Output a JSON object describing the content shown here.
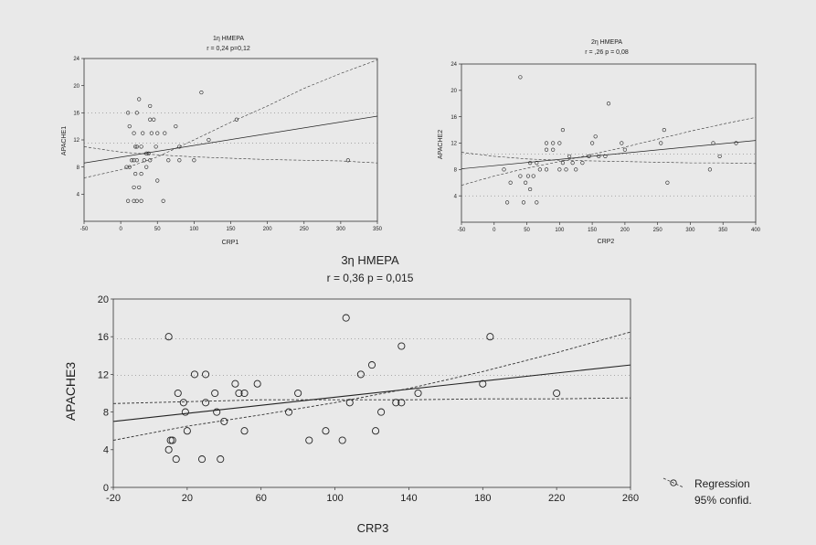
{
  "chart_data": [
    {
      "type": "scatter",
      "id": "chart1",
      "title": "1η ΗΜΕΡΑ",
      "subtitle": "r = 0,24 p=0,12",
      "xlabel": "CRP1",
      "ylabel": "APACHE1",
      "xlim": [
        -50,
        350
      ],
      "ylim": [
        0,
        24
      ],
      "xticks": [
        -50,
        0,
        50,
        100,
        150,
        200,
        250,
        300,
        350
      ],
      "yticks": [
        4,
        8,
        12,
        16,
        20,
        24
      ],
      "regression": {
        "x0": -50,
        "y0": 8.6,
        "x1": 350,
        "y1": 15.5
      },
      "conf_upper": [
        [
          -50,
          6.4
        ],
        [
          0,
          7.6
        ],
        [
          50,
          9.5
        ],
        [
          100,
          12
        ],
        [
          150,
          14.6
        ],
        [
          200,
          17
        ],
        [
          250,
          19.6
        ],
        [
          300,
          21.8
        ],
        [
          350,
          23.8
        ]
      ],
      "conf_lower": [
        [
          -50,
          11
        ],
        [
          0,
          10.2
        ],
        [
          50,
          9.8
        ],
        [
          100,
          9.5
        ],
        [
          150,
          9.3
        ],
        [
          200,
          9.1
        ],
        [
          250,
          9
        ],
        [
          300,
          8.9
        ],
        [
          350,
          8.6
        ]
      ],
      "band_levels": [
        11.5,
        16
      ],
      "points": [
        [
          10,
          3
        ],
        [
          18,
          3
        ],
        [
          22,
          3
        ],
        [
          28,
          3
        ],
        [
          58,
          3
        ],
        [
          18,
          5
        ],
        [
          25,
          5
        ],
        [
          50,
          6
        ],
        [
          8,
          8
        ],
        [
          20,
          7
        ],
        [
          28,
          7
        ],
        [
          35,
          8
        ],
        [
          12,
          8
        ],
        [
          15,
          9
        ],
        [
          18,
          9
        ],
        [
          22,
          9
        ],
        [
          32,
          9
        ],
        [
          40,
          9
        ],
        [
          65,
          9
        ],
        [
          80,
          9
        ],
        [
          120,
          12
        ],
        [
          35,
          10
        ],
        [
          38,
          10
        ],
        [
          20,
          11
        ],
        [
          22,
          11
        ],
        [
          28,
          11
        ],
        [
          48,
          11
        ],
        [
          30,
          13
        ],
        [
          42,
          13
        ],
        [
          50,
          13
        ],
        [
          60,
          13
        ],
        [
          18,
          13
        ],
        [
          12,
          14
        ],
        [
          75,
          14
        ],
        [
          40,
          15
        ],
        [
          45,
          15
        ],
        [
          10,
          16
        ],
        [
          22,
          16
        ],
        [
          40,
          17
        ],
        [
          25,
          18
        ],
        [
          110,
          19
        ],
        [
          158,
          15
        ],
        [
          80,
          11
        ],
        [
          100,
          9
        ],
        [
          310,
          9
        ]
      ]
    },
    {
      "type": "scatter",
      "id": "chart2",
      "title": "2η ΗΜΕΡΑ",
      "subtitle": "r = ,26 p = 0,08",
      "xlabel": "CRP2",
      "ylabel": "APACHE2",
      "xlim": [
        -50,
        400
      ],
      "ylim": [
        0,
        24
      ],
      "xticks": [
        -50,
        0,
        50,
        100,
        150,
        200,
        250,
        300,
        350,
        400
      ],
      "yticks": [
        4,
        8,
        12,
        16,
        20,
        24
      ],
      "regression": {
        "x0": -50,
        "y0": 8.1,
        "x1": 400,
        "y1": 12.4
      },
      "conf_upper": [
        [
          -50,
          5.6
        ],
        [
          0,
          7
        ],
        [
          50,
          8.2
        ],
        [
          100,
          9.2
        ],
        [
          150,
          10.3
        ],
        [
          200,
          11.4
        ],
        [
          250,
          12.6
        ],
        [
          300,
          13.8
        ],
        [
          350,
          14.9
        ],
        [
          400,
          15.9
        ]
      ],
      "conf_lower": [
        [
          -50,
          10.6
        ],
        [
          0,
          10
        ],
        [
          50,
          9.6
        ],
        [
          100,
          9.4
        ],
        [
          150,
          9.3
        ],
        [
          200,
          9.2
        ],
        [
          250,
          9.1
        ],
        [
          300,
          9
        ],
        [
          350,
          9
        ],
        [
          400,
          8.9
        ]
      ],
      "band_levels": [
        10.3,
        4
      ],
      "points": [
        [
          20,
          3
        ],
        [
          45,
          3
        ],
        [
          65,
          3
        ],
        [
          55,
          5
        ],
        [
          25,
          6
        ],
        [
          48,
          6
        ],
        [
          52,
          7
        ],
        [
          60,
          7
        ],
        [
          70,
          8
        ],
        [
          80,
          8
        ],
        [
          100,
          8
        ],
        [
          110,
          8
        ],
        [
          125,
          8
        ],
        [
          135,
          9
        ],
        [
          40,
          7
        ],
        [
          15,
          8
        ],
        [
          55,
          9
        ],
        [
          65,
          9
        ],
        [
          80,
          11
        ],
        [
          90,
          11
        ],
        [
          115,
          10
        ],
        [
          145,
          10
        ],
        [
          160,
          10
        ],
        [
          170,
          10
        ],
        [
          80,
          12
        ],
        [
          90,
          12
        ],
        [
          100,
          12
        ],
        [
          105,
          14
        ],
        [
          150,
          12
        ],
        [
          155,
          13
        ],
        [
          195,
          12
        ],
        [
          200,
          11
        ],
        [
          255,
          12
        ],
        [
          260,
          14
        ],
        [
          265,
          6
        ],
        [
          335,
          12
        ],
        [
          345,
          10
        ],
        [
          330,
          8
        ],
        [
          370,
          12
        ],
        [
          175,
          18
        ],
        [
          40,
          22
        ],
        [
          105,
          9
        ],
        [
          120,
          9
        ]
      ]
    },
    {
      "type": "scatter",
      "id": "chart3",
      "title": "3η ΗΜΕΡΑ",
      "subtitle": "r = 0,36  p = 0,015",
      "xlabel": "CRP3",
      "ylabel": "APACHE3",
      "xlim": [
        -20,
        260
      ],
      "ylim": [
        0,
        20
      ],
      "xticks": [
        -20,
        20,
        60,
        100,
        140,
        180,
        220,
        260
      ],
      "yticks": [
        0,
        4,
        8,
        12,
        16,
        20
      ],
      "regression": {
        "x0": -20,
        "y0": 7,
        "x1": 260,
        "y1": 13
      },
      "conf_upper": [
        [
          -20,
          5
        ],
        [
          20,
          6.5
        ],
        [
          60,
          7.7
        ],
        [
          100,
          9
        ],
        [
          140,
          10.5
        ],
        [
          180,
          12.3
        ],
        [
          220,
          14.3
        ],
        [
          260,
          16.5
        ]
      ],
      "conf_lower": [
        [
          -20,
          8.9
        ],
        [
          20,
          9.1
        ],
        [
          60,
          9.3
        ],
        [
          100,
          9.3
        ],
        [
          140,
          9.3
        ],
        [
          180,
          9.4
        ],
        [
          220,
          9.4
        ],
        [
          260,
          9.5
        ]
      ],
      "band_levels": [
        11.9,
        15.8
      ],
      "points": [
        [
          10,
          16
        ],
        [
          10,
          4
        ],
        [
          11,
          5
        ],
        [
          12,
          5
        ],
        [
          14,
          3
        ],
        [
          15,
          10
        ],
        [
          18,
          9
        ],
        [
          19,
          8
        ],
        [
          20,
          6
        ],
        [
          24,
          12
        ],
        [
          28,
          3
        ],
        [
          30,
          12
        ],
        [
          30,
          9
        ],
        [
          35,
          10
        ],
        [
          36,
          8
        ],
        [
          38,
          3
        ],
        [
          40,
          7
        ],
        [
          46,
          11
        ],
        [
          48,
          10
        ],
        [
          51,
          10
        ],
        [
          51,
          6
        ],
        [
          58,
          11
        ],
        [
          75,
          8
        ],
        [
          80,
          10
        ],
        [
          86,
          5
        ],
        [
          95,
          6
        ],
        [
          104,
          5
        ],
        [
          106,
          18
        ],
        [
          108,
          9
        ],
        [
          114,
          12
        ],
        [
          120,
          13
        ],
        [
          122,
          6
        ],
        [
          125,
          8
        ],
        [
          133,
          9
        ],
        [
          136,
          9
        ],
        [
          136,
          15
        ],
        [
          145,
          10
        ],
        [
          180,
          11
        ],
        [
          184,
          16
        ],
        [
          220,
          10
        ]
      ]
    }
  ],
  "legend": {
    "regression_label": "Regression",
    "confid_label": "95% confid.",
    "placement": "right"
  }
}
